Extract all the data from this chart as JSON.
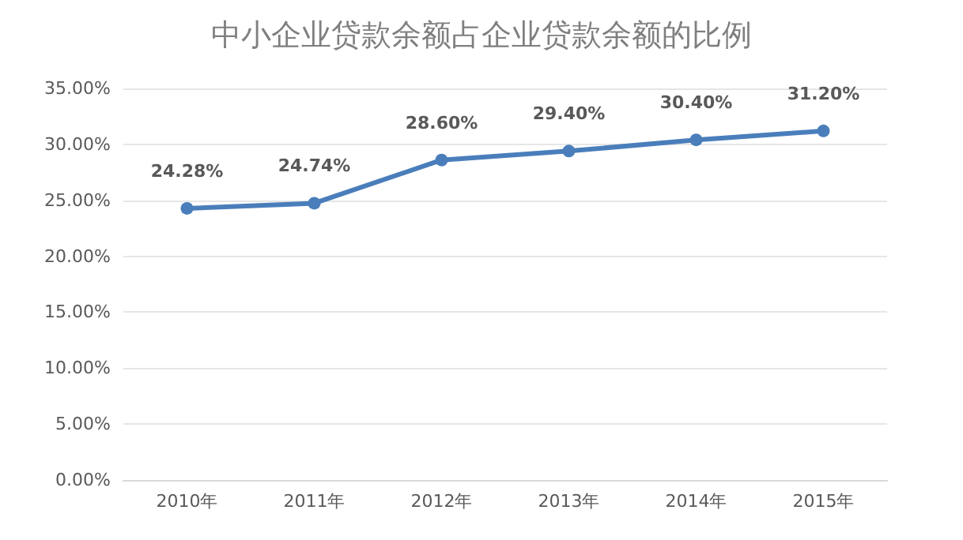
{
  "chart_data": {
    "type": "line",
    "title": "中小企业贷款余额占企业贷款余额的比例",
    "categories": [
      "2010年",
      "2011年",
      "2012年",
      "2013年",
      "2014年",
      "2015年"
    ],
    "series": [
      {
        "color": "#4a7ebb",
        "values": [
          24.28,
          24.74,
          28.6,
          29.4,
          30.4,
          31.2
        ],
        "value_labels": [
          "24.28%",
          "24.74%",
          "28.60%",
          "29.40%",
          "30.40%",
          "31.20%"
        ]
      }
    ],
    "ylim": [
      0,
      35
    ],
    "yticks": [
      {
        "value": 0,
        "label": "0.00%"
      },
      {
        "value": 5,
        "label": "5.00%"
      },
      {
        "value": 10,
        "label": "10.00%"
      },
      {
        "value": 15,
        "label": "15.00%"
      },
      {
        "value": 20,
        "label": "20.00%"
      },
      {
        "value": 25,
        "label": "25.00%"
      },
      {
        "value": 30,
        "label": "30.00%"
      },
      {
        "value": 35,
        "label": "35.00%"
      }
    ],
    "grid": "y",
    "marker": "circle",
    "line_style": "solid"
  }
}
